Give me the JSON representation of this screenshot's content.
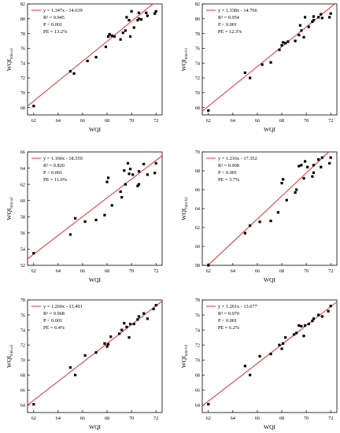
{
  "colors": {
    "line": "#e31a1c",
    "marker": "#000000",
    "axis": "#000000",
    "background": "#ffffff"
  },
  "chart_data": [
    {
      "type": "scatter",
      "xlabel": "WQI",
      "ylabel": {
        "main": "WQI",
        "sub": "min-a1"
      },
      "xlim": [
        61.5,
        72.5
      ],
      "ylim": [
        67,
        82
      ],
      "xticks": [
        62,
        64,
        66,
        68,
        70,
        72
      ],
      "yticks": [
        68,
        70,
        72,
        74,
        76,
        78,
        80,
        82
      ],
      "fit": {
        "slope": 1.347,
        "intercept": -14.639
      },
      "legend_text": "y = 1.347x - 14.639",
      "stats": [
        "R² = 0.945",
        "P < 0.001",
        "PE = 13.2%"
      ],
      "points": [
        [
          62.0,
          68.2
        ],
        [
          65.0,
          72.9
        ],
        [
          65.3,
          72.6
        ],
        [
          66.4,
          74.3
        ],
        [
          67.1,
          74.8
        ],
        [
          67.9,
          76.2
        ],
        [
          68.1,
          77.6
        ],
        [
          68.2,
          77.9
        ],
        [
          68.4,
          77.7
        ],
        [
          68.6,
          77.6
        ],
        [
          69.1,
          77.2
        ],
        [
          69.3,
          78.1
        ],
        [
          69.5,
          78.4
        ],
        [
          69.6,
          80.2
        ],
        [
          69.8,
          79.8
        ],
        [
          69.9,
          77.6
        ],
        [
          70.0,
          81.0
        ],
        [
          70.2,
          78.8
        ],
        [
          70.5,
          79.8
        ],
        [
          70.6,
          80.0
        ],
        [
          70.6,
          80.8
        ],
        [
          70.8,
          79.9
        ],
        [
          71.2,
          80.8
        ],
        [
          71.3,
          80.4
        ],
        [
          71.9,
          80.7
        ],
        [
          72.0,
          81.0
        ]
      ]
    },
    {
      "type": "scatter",
      "xlabel": "WQI",
      "ylabel": {
        "main": "WQI",
        "sub": "min-b1"
      },
      "xlim": [
        61.5,
        72.5
      ],
      "ylim": [
        67,
        82
      ],
      "xticks": [
        62,
        64,
        66,
        68,
        70,
        72
      ],
      "yticks": [
        68,
        70,
        72,
        74,
        76,
        78,
        80,
        82
      ],
      "fit": {
        "slope": 1.338,
        "intercept": -14.766
      },
      "legend_text": "y = 1.338x - 14.766",
      "stats": [
        "R² = 0.954",
        "P < 0.001",
        "PE = 12.3%"
      ],
      "points": [
        [
          62.0,
          67.6
        ],
        [
          65.0,
          72.7
        ],
        [
          65.4,
          72.0
        ],
        [
          66.4,
          73.8
        ],
        [
          67.1,
          74.1
        ],
        [
          67.8,
          75.8
        ],
        [
          68.0,
          76.4
        ],
        [
          68.1,
          76.8
        ],
        [
          68.3,
          76.7
        ],
        [
          68.5,
          76.9
        ],
        [
          69.1,
          77.0
        ],
        [
          69.4,
          77.8
        ],
        [
          69.5,
          79.1
        ],
        [
          69.6,
          78.4
        ],
        [
          69.8,
          77.5
        ],
        [
          69.9,
          80.2
        ],
        [
          70.2,
          78.9
        ],
        [
          70.5,
          79.6
        ],
        [
          70.6,
          79.8
        ],
        [
          70.6,
          80.3
        ],
        [
          71.0,
          80.2
        ],
        [
          71.2,
          80.6
        ],
        [
          71.3,
          80.1
        ],
        [
          71.9,
          80.2
        ],
        [
          72.0,
          80.7
        ]
      ]
    },
    {
      "type": "scatter",
      "xlabel": "WQI",
      "ylabel": {
        "main": "WQI",
        "sub": "min-a2"
      },
      "xlim": [
        61.5,
        72.5
      ],
      "ylim": [
        52,
        66
      ],
      "xticks": [
        62,
        64,
        66,
        68,
        70,
        72
      ],
      "yticks": [
        52,
        54,
        56,
        58,
        60,
        62,
        64,
        66
      ],
      "fit": {
        "slope": 1.16,
        "intercept": -18.55
      },
      "legend_text": "y = 1.160x - 18.550",
      "stats": [
        "R² = 0.820",
        "P < 0.001",
        "PE = 11.0%"
      ],
      "points": [
        [
          62.0,
          53.5
        ],
        [
          65.0,
          55.8
        ],
        [
          65.4,
          57.8
        ],
        [
          66.2,
          57.4
        ],
        [
          67.1,
          57.6
        ],
        [
          67.8,
          58.2
        ],
        [
          68.0,
          62.3
        ],
        [
          68.1,
          62.8
        ],
        [
          68.4,
          59.4
        ],
        [
          69.1,
          61.1
        ],
        [
          69.2,
          60.4
        ],
        [
          69.4,
          63.7
        ],
        [
          69.5,
          62.0
        ],
        [
          69.7,
          64.6
        ],
        [
          69.8,
          63.3
        ],
        [
          69.9,
          63.9
        ],
        [
          70.1,
          63.2
        ],
        [
          70.5,
          61.8
        ],
        [
          70.6,
          62.0
        ],
        [
          70.6,
          63.6
        ],
        [
          71.0,
          64.5
        ],
        [
          71.3,
          63.2
        ],
        [
          71.9,
          63.4
        ],
        [
          72.0,
          64.6
        ]
      ]
    },
    {
      "type": "scatter",
      "xlabel": "WQI",
      "ylabel": {
        "main": "WQI",
        "sub": "min-b2"
      },
      "xlim": [
        61.5,
        72.5
      ],
      "ylim": [
        58,
        70
      ],
      "xticks": [
        62,
        64,
        66,
        68,
        70,
        72
      ],
      "yticks": [
        58,
        60,
        62,
        64,
        66,
        68,
        70
      ],
      "fit": {
        "slope": 1.216,
        "intercept": -17.352
      },
      "legend_text": "y = 1.216x - 17.352",
      "stats": [
        "R² = 0.908",
        "P < 0.001",
        "PE = 3.7%"
      ],
      "points": [
        [
          62.0,
          58.0
        ],
        [
          65.0,
          61.4
        ],
        [
          65.4,
          62.2
        ],
        [
          66.2,
          62.6
        ],
        [
          67.1,
          62.7
        ],
        [
          67.7,
          63.6
        ],
        [
          68.0,
          66.7
        ],
        [
          68.1,
          67.1
        ],
        [
          68.4,
          64.9
        ],
        [
          69.1,
          65.7
        ],
        [
          69.2,
          66.0
        ],
        [
          69.4,
          68.5
        ],
        [
          69.6,
          68.6
        ],
        [
          69.8,
          67.2
        ],
        [
          69.9,
          69.0
        ],
        [
          70.1,
          68.4
        ],
        [
          70.5,
          67.4
        ],
        [
          70.6,
          67.8
        ],
        [
          70.6,
          68.6
        ],
        [
          71.0,
          69.2
        ],
        [
          71.2,
          68.4
        ],
        [
          71.3,
          69.4
        ],
        [
          71.9,
          68.8
        ],
        [
          72.0,
          69.4
        ]
      ]
    },
    {
      "type": "scatter",
      "xlabel": "WQI",
      "ylabel": {
        "main": "WQI",
        "sub": "min-a3"
      },
      "xlim": [
        61.5,
        72.5
      ],
      "ylim": [
        63,
        78
      ],
      "xticks": [
        62,
        64,
        66,
        68,
        70,
        72
      ],
      "yticks": [
        64,
        66,
        68,
        70,
        72,
        74,
        76,
        78
      ],
      "fit": {
        "slope": 1.26,
        "intercept": -13.491
      },
      "legend_text": "y = 1.260x - 13.491",
      "stats": [
        "R² = 0.968",
        "P < 0.001",
        "PE = 6.4%"
      ],
      "points": [
        [
          62.0,
          64.1
        ],
        [
          65.0,
          69.0
        ],
        [
          65.4,
          68.0
        ],
        [
          66.2,
          70.6
        ],
        [
          67.1,
          71.0
        ],
        [
          67.8,
          72.2
        ],
        [
          68.0,
          71.8
        ],
        [
          68.1,
          72.1
        ],
        [
          68.3,
          73.1
        ],
        [
          69.0,
          73.5
        ],
        [
          69.2,
          74.0
        ],
        [
          69.4,
          74.9
        ],
        [
          69.6,
          74.4
        ],
        [
          69.8,
          73.0
        ],
        [
          69.9,
          74.8
        ],
        [
          70.2,
          74.8
        ],
        [
          70.5,
          75.4
        ],
        [
          70.6,
          75.8
        ],
        [
          71.0,
          76.2
        ],
        [
          71.3,
          75.5
        ],
        [
          71.8,
          76.8
        ],
        [
          72.0,
          77.3
        ]
      ]
    },
    {
      "type": "scatter",
      "xlabel": "WQI",
      "ylabel": {
        "main": "WQI",
        "sub": "min-b3"
      },
      "xlim": [
        61.5,
        72.5
      ],
      "ylim": [
        63,
        78
      ],
      "xticks": [
        62,
        64,
        66,
        68,
        70,
        72
      ],
      "yticks": [
        64,
        66,
        68,
        70,
        72,
        74,
        76,
        78
      ],
      "fit": {
        "slope": 1.261,
        "intercept": -13.677
      },
      "legend_text": "y = 1.261x - 13.677",
      "stats": [
        "R² = 0.970",
        "P < 0.001",
        "PE = 6.2%"
      ],
      "points": [
        [
          62.0,
          64.1
        ],
        [
          65.0,
          69.2
        ],
        [
          65.4,
          68.0
        ],
        [
          66.2,
          70.5
        ],
        [
          67.1,
          70.8
        ],
        [
          67.8,
          72.0
        ],
        [
          68.0,
          71.5
        ],
        [
          68.1,
          72.2
        ],
        [
          68.3,
          73.0
        ],
        [
          69.0,
          73.4
        ],
        [
          69.2,
          73.6
        ],
        [
          69.4,
          74.6
        ],
        [
          69.6,
          74.5
        ],
        [
          69.8,
          73.2
        ],
        [
          69.9,
          74.6
        ],
        [
          70.2,
          74.8
        ],
        [
          70.5,
          75.2
        ],
        [
          70.6,
          75.5
        ],
        [
          71.0,
          76.0
        ],
        [
          71.3,
          75.8
        ],
        [
          71.8,
          76.5
        ],
        [
          72.0,
          77.2
        ]
      ]
    }
  ]
}
